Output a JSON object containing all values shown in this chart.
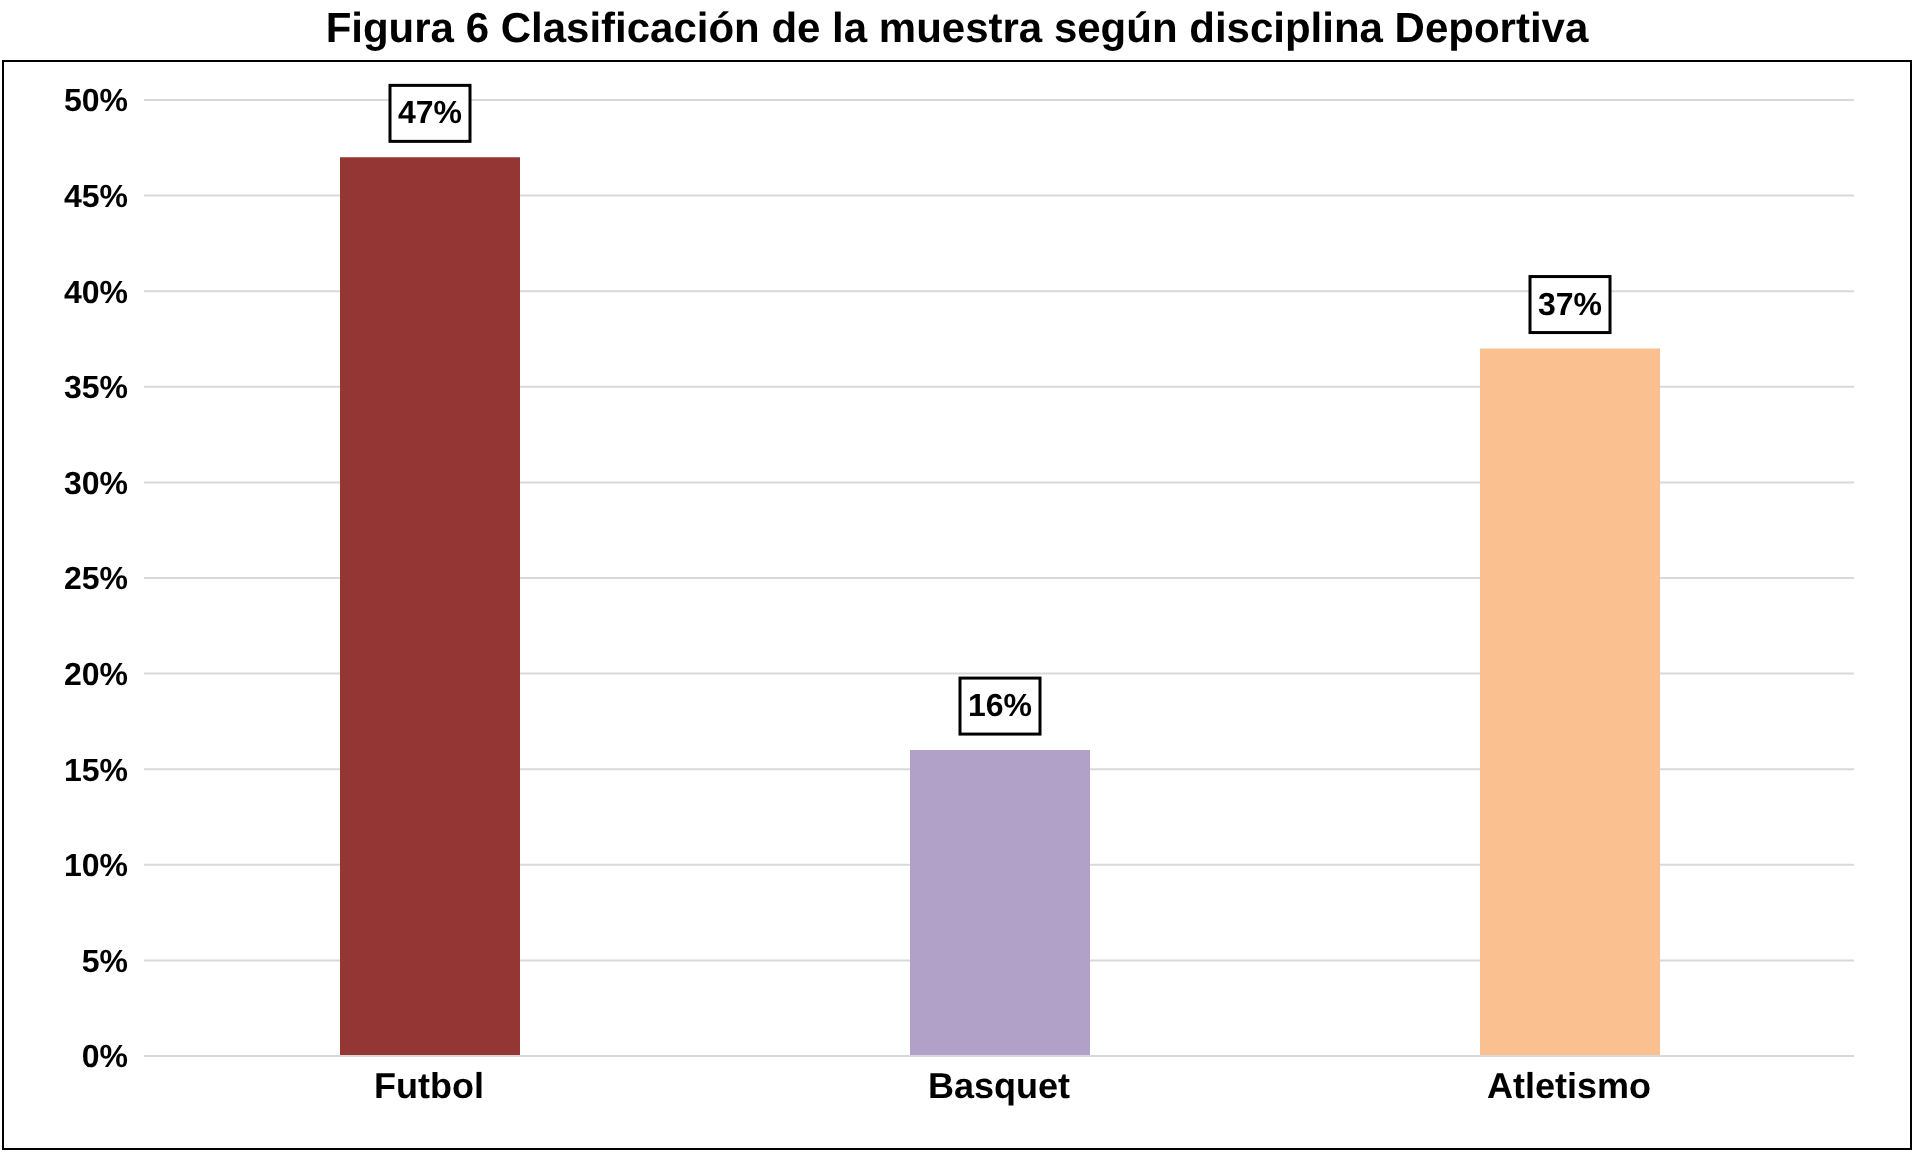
{
  "chart_data": {
    "type": "bar",
    "title": "Figura 6 Clasificación de la muestra según disciplina Deportiva",
    "categories": [
      "Futbol",
      "Basquet",
      "Atletismo"
    ],
    "values": [
      47,
      16,
      37
    ],
    "colors": [
      "#943634",
      "#b1a0c7",
      "#fac090"
    ],
    "value_labels": [
      "47%",
      "16%",
      "37%"
    ],
    "ylim": [
      0,
      50
    ],
    "yticks": [
      {
        "value": 0,
        "label": "0%"
      },
      {
        "value": 5,
        "label": "5%"
      },
      {
        "value": 10,
        "label": "10%"
      },
      {
        "value": 15,
        "label": "15%"
      },
      {
        "value": 20,
        "label": "20%"
      },
      {
        "value": 25,
        "label": "25%"
      },
      {
        "value": 30,
        "label": "30%"
      },
      {
        "value": 35,
        "label": "35%"
      },
      {
        "value": 40,
        "label": "40%"
      },
      {
        "value": 45,
        "label": "45%"
      },
      {
        "value": 50,
        "label": "50%"
      }
    ],
    "grid": "y"
  }
}
